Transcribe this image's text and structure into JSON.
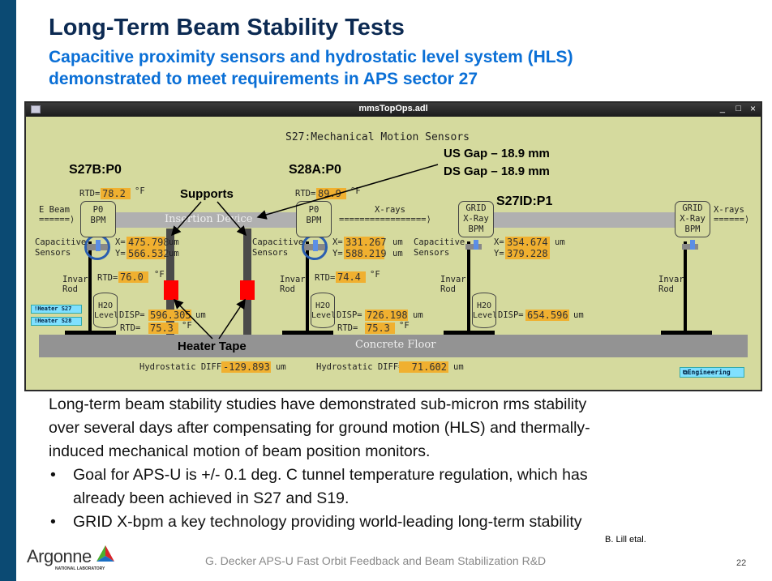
{
  "slide": {
    "title": "Long-Term Beam Stability Tests",
    "subtitle_lines": [
      "Capacitive proximity sensors and hydrostatic level system (HLS)",
      "demonstrated to meet requirements in APS sector 27"
    ],
    "body": "Long-term beam stability studies have demonstrated sub-micron rms stability over several days after compensating for ground motion (HLS) and thermally-induced mechanical motion of beam position monitors.",
    "body_lines": [
      "Long-term beam stability studies have demonstrated sub-micron rms stability",
      "over several days after compensating for ground motion (HLS) and thermally-",
      "induced mechanical motion of beam position monitors."
    ],
    "bullets": [
      {
        "lines": [
          "Goal for APS-U is +/- 0.1 deg. C tunnel temperature regulation, which has",
          "already been achieved in S27 and S19."
        ]
      },
      {
        "lines": [
          "GRID X-bpm a key technology providing world-leading long-term stability"
        ]
      }
    ],
    "citation": "B. Lill etal.",
    "footer": "G. Decker APS-U Fast Orbit Feedback and Beam Stabilization R&D",
    "page": "22",
    "logo": "Argonne",
    "logo_sub": "NATIONAL LABORATORY"
  },
  "window": {
    "title": "mmsTopOps.adl",
    "controls": [
      "_",
      "□",
      "×"
    ],
    "heading": "S27:Mechanical Motion Sensors",
    "annotations": {
      "us_gap": "US Gap – 18.9 mm",
      "ds_gap": "DS Gap – 18.9 mm",
      "supports": "Supports",
      "heater_tape": "Heater Tape",
      "s27b": "S27B:P0",
      "s28a": "S28A:P0",
      "s27id": "S27ID:P1"
    },
    "labels": {
      "ebeam": "E Beam",
      "arrow_short": "======⟩",
      "xrays": "X-rays",
      "arrow_long": "=================⟩",
      "insertion_device": "Insertion Device",
      "concrete_floor": "Concrete Floor",
      "capacitive": "Capacitive",
      "sensors": "Sensors",
      "invar": "Invar",
      "rod": "Rod",
      "h2o": "H2O",
      "level": "Level",
      "p0": "P0",
      "bpm": "BPM",
      "grid": "GRID",
      "xray": "X-Ray",
      "rtd": "RTD=",
      "degf": "°F",
      "x": "X=",
      "y": "Y=",
      "um": "um",
      "disp": "DISP=",
      "hydro": "Hydrostatic DIFF="
    },
    "values": {
      "rtd_s27b_top": "78.2",
      "rtd_s28a_top": "89.9",
      "s27b_x": "475.798",
      "s27b_y": "566.532",
      "s28a_x": "331.267",
      "s28a_y": "588.219",
      "s27id_x": "354.674",
      "s27id_y": "379.228",
      "rtd_s27b_rod": "76.0",
      "rtd_s28a_rod": "74.4",
      "disp1": "596.305",
      "rtd1": "75.3",
      "disp2": "726.198",
      "rtd2": "75.3",
      "disp3": "654.596",
      "hydro1": "-129.893",
      "hydro2": "71.602"
    },
    "buttons": {
      "heater27": "!Heater S27",
      "heater28": "!Heater S28",
      "engineering": "Engineering"
    }
  }
}
